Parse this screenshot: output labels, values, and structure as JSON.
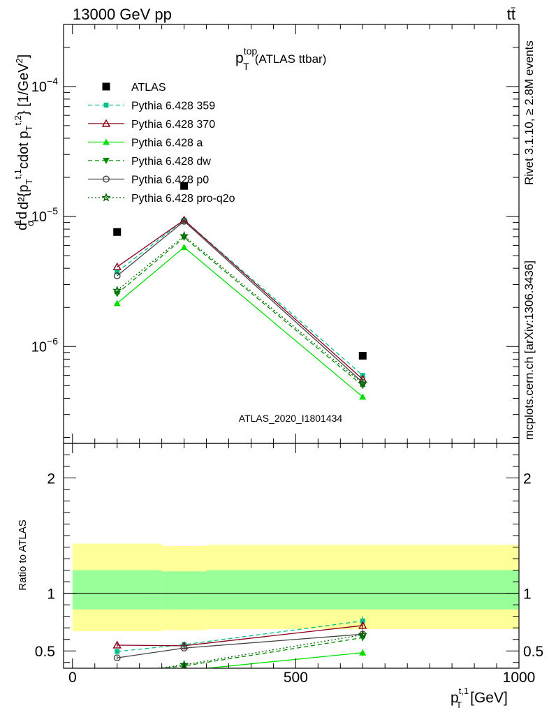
{
  "header": {
    "left": "13000 GeV pp",
    "right": "tt̄"
  },
  "side_text": {
    "rivet": "Rivet 3.1.10, ≥ 2.8M events",
    "mcplots": "mcplots.cern.ch [arXiv:1306.3436]"
  },
  "chart_data": [
    {
      "type": "line",
      "title_main": "p",
      "title_sup": "top",
      "title_sub": "T",
      "title_rest": "(ATLAS ttbar)",
      "watermark": "ATLAS_2020_I1801434",
      "ylabel": "d²σ/d p_T^{t,1} d{p_T^{t,2}} [1/GeV²]",
      "ylabel_main": "d²{p",
      "ylabel_tail": "cdot p",
      "ylabel_unit": "} [1/GeV",
      "yscale": "log",
      "xlim": [
        -20,
        1000
      ],
      "ylim": [
        1.8e-07,
        0.0003
      ],
      "x": [
        100,
        250,
        650
      ],
      "y_tick_labels": [
        "10",
        "10",
        "10"
      ],
      "y_tick_exponents": [
        "−6",
        "−5",
        "−4"
      ],
      "legend_placement": "top-left",
      "series": [
        {
          "name": "ATLAS",
          "color": "#000000",
          "marker": "square",
          "dash": "none",
          "values": [
            7.6e-06,
            1.72e-05,
            8.5e-07
          ]
        },
        {
          "name": "Pythia 6.428 359",
          "color": "#00c08a",
          "marker": "square-small",
          "dash": "dashed",
          "values": [
            3.75e-06,
            9.4e-06,
            6e-07
          ]
        },
        {
          "name": "Pythia 6.428 370",
          "color": "#8b0018",
          "marker": "triangle-open",
          "dash": "solid",
          "values": [
            4.1e-06,
            9.4e-06,
            5.6e-07
          ]
        },
        {
          "name": "Pythia 6.428 a",
          "color": "#00e000",
          "marker": "triangle",
          "dash": "solid",
          "values": [
            2.15e-06,
            5.8e-06,
            4.1e-07
          ]
        },
        {
          "name": "Pythia 6.428 dw",
          "color": "#008c00",
          "marker": "triangle-down",
          "dash": "dashed",
          "values": [
            2.55e-06,
            6.9e-06,
            5e-07
          ]
        },
        {
          "name": "Pythia 6.428 p0",
          "color": "#444444",
          "marker": "circle-open",
          "dash": "solid",
          "values": [
            3.5e-06,
            9.2e-06,
            5.3e-07
          ]
        },
        {
          "name": "Pythia 6.428 pro-q2o",
          "color": "#006400",
          "marker": "star",
          "dash": "dotted",
          "values": [
            2.7e-06,
            7.1e-06,
            5.2e-07
          ]
        }
      ]
    },
    {
      "type": "line",
      "ylabel": "Ratio to ATLAS",
      "xlabel_main": "p",
      "xlabel_sup": "t,1",
      "xlabel_sub": "T",
      "xlabel_unit": "[GeV]",
      "xlim": [
        -20,
        1000
      ],
      "ylim": [
        0.35,
        2.3
      ],
      "x_ticks": [
        0,
        500,
        1000
      ],
      "x_tick_labels": [
        "0",
        "500",
        "1000"
      ],
      "y_ticks": [
        0.5,
        1,
        2
      ],
      "y_tick_labels": [
        "0.5",
        "1",
        "2"
      ],
      "x": [
        100,
        250,
        650
      ],
      "bands": [
        {
          "x0": 0,
          "x1": 200,
          "yellow": [
            0.67,
            1.43
          ],
          "green": [
            0.86,
            1.2
          ]
        },
        {
          "x0": 200,
          "x1": 300,
          "yellow": [
            0.68,
            1.41
          ],
          "green": [
            0.86,
            1.19
          ]
        },
        {
          "x0": 300,
          "x1": 1000,
          "yellow": [
            0.69,
            1.42
          ],
          "green": [
            0.86,
            1.2
          ]
        }
      ],
      "series": [
        {
          "name": "Pythia 6.428 359",
          "color": "#00c08a",
          "marker": "square-small",
          "dash": "dashed",
          "values": [
            0.495,
            0.555,
            0.76
          ],
          "errors": [
            0.02,
            0.02,
            0.04
          ]
        },
        {
          "name": "Pythia 6.428 370",
          "color": "#8b0018",
          "marker": "triangle-open",
          "dash": "solid",
          "values": [
            0.55,
            0.545,
            0.72
          ],
          "errors": [
            0.015,
            0.015,
            0.035
          ]
        },
        {
          "name": "Pythia 6.428 a",
          "color": "#00e000",
          "marker": "triangle",
          "dash": "solid",
          "values": [
            0.28,
            0.33,
            0.485
          ],
          "errors": [
            0.01,
            0.01,
            0.03
          ]
        },
        {
          "name": "Pythia 6.428 dw",
          "color": "#008c00",
          "marker": "triangle-down",
          "dash": "dashed",
          "values": [
            0.31,
            0.37,
            0.615
          ],
          "errors": [
            0.01,
            0.01,
            0.03
          ]
        },
        {
          "name": "Pythia 6.428 p0",
          "color": "#444444",
          "marker": "circle-open",
          "dash": "solid",
          "values": [
            0.44,
            0.525,
            0.645
          ],
          "errors": [
            0.015,
            0.015,
            0.035
          ]
        },
        {
          "name": "Pythia 6.428 pro-q2o",
          "color": "#006400",
          "marker": "star",
          "dash": "dotted",
          "values": [
            0.3,
            0.38,
            0.64
          ],
          "errors": [
            0.01,
            0.01,
            0.03
          ]
        }
      ]
    }
  ]
}
